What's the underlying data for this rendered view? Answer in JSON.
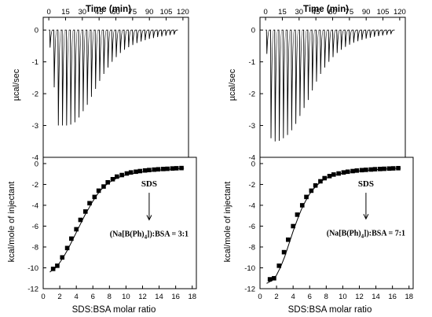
{
  "chart_data": [
    {
      "id": "left",
      "type": "line",
      "top_panel": {
        "title": "Time (min)",
        "ylabel": "µcal/sec",
        "xlim": [
          -5,
          125
        ],
        "ylim": [
          -4,
          0.4
        ],
        "x_ticks": [
          0,
          15,
          30,
          45,
          60,
          75,
          90,
          105,
          120
        ],
        "y_ticks": [
          0,
          -1,
          -2,
          -3,
          -4
        ],
        "y_tick_labels": [
          "0",
          "-1",
          "-2",
          "-3",
          "-4"
        ],
        "injection_start_min": 0.8,
        "injection_interval_min": 3.7,
        "peak_minima": [
          -0.55,
          -1.8,
          -3.0,
          -3.0,
          -3.0,
          -2.97,
          -2.9,
          -2.75,
          -2.55,
          -2.35,
          -2.1,
          -1.85,
          -1.6,
          -1.38,
          -1.18,
          -1.0,
          -0.85,
          -0.72,
          -0.62,
          -0.54,
          -0.47,
          -0.41,
          -0.36,
          -0.32,
          -0.28,
          -0.25,
          -0.22,
          -0.2,
          -0.18,
          -0.16,
          -0.14
        ]
      },
      "bottom_panel": {
        "xlabel": "SDS:BSA molar ratio",
        "ylabel": "kcal/mole of injectant",
        "xlim": [
          0,
          18.5
        ],
        "ylim": [
          -12,
          0.6
        ],
        "x_ticks": [
          0,
          2,
          4,
          6,
          8,
          10,
          12,
          14,
          16,
          18
        ],
        "y_ticks": [
          0,
          -2,
          -4,
          -6,
          -8,
          -10,
          -12
        ],
        "y_tick_labels": [
          "0",
          "-2",
          "-4",
          "-6",
          "-8",
          "-10",
          "-12"
        ],
        "points_x": [
          1.2,
          1.7,
          2.3,
          2.9,
          3.4,
          4.0,
          4.5,
          5.1,
          5.6,
          6.2,
          6.7,
          7.3,
          7.8,
          8.4,
          8.9,
          9.5,
          10.1,
          10.6,
          11.2,
          11.7,
          12.3,
          12.8,
          13.4,
          13.9,
          14.5,
          15.0,
          15.6,
          16.1,
          16.7
        ],
        "points_y": [
          -10.1,
          -9.8,
          -9.0,
          -8.1,
          -7.2,
          -6.3,
          -5.4,
          -4.6,
          -3.8,
          -3.2,
          -2.6,
          -2.2,
          -1.8,
          -1.5,
          -1.25,
          -1.1,
          -0.95,
          -0.85,
          -0.78,
          -0.72,
          -0.66,
          -0.62,
          -0.58,
          -0.55,
          -0.52,
          -0.5,
          -0.47,
          -0.45,
          -0.43
        ],
        "fit_x": [
          0.8,
          1.5,
          2.0,
          2.5,
          3.0,
          3.5,
          4.0,
          4.5,
          5.0,
          5.5,
          6.0,
          6.5,
          7.0,
          7.5,
          8.0,
          9.0,
          10.0,
          11.0,
          12.0,
          13.0,
          14.0,
          15.0,
          16.0,
          17.0
        ],
        "fit_y": [
          -10.4,
          -10.0,
          -9.5,
          -8.9,
          -8.2,
          -7.4,
          -6.6,
          -5.8,
          -5.0,
          -4.3,
          -3.6,
          -3.0,
          -2.5,
          -2.1,
          -1.8,
          -1.35,
          -1.08,
          -0.92,
          -0.8,
          -0.71,
          -0.63,
          -0.56,
          -0.5,
          -0.45
        ],
        "annotation_title": "SDS",
        "annotation_label_main": "(Na[B(Ph)",
        "annotation_label_sub": "4",
        "annotation_label_end": "]):BSA = 3:1",
        "annotation_x": 12.8,
        "annotation_title_y": -2.2,
        "annotation_arrow_from_y": -2.8,
        "annotation_arrow_to_y": -5.4,
        "annotation_label_y": -7.0
      }
    },
    {
      "id": "right",
      "type": "line",
      "top_panel": {
        "title": "Time (min)",
        "ylabel": "µcal/sec",
        "xlim": [
          -5,
          125
        ],
        "ylim": [
          -4,
          0.4
        ],
        "x_ticks": [
          0,
          15,
          30,
          45,
          60,
          75,
          90,
          105,
          120
        ],
        "y_ticks": [
          0,
          -1,
          -2,
          -3,
          -4
        ],
        "y_tick_labels": [
          "0",
          "-1",
          "-2",
          "-3",
          "-4"
        ],
        "injection_start_min": 0.8,
        "injection_interval_min": 3.7,
        "peak_minima": [
          -0.75,
          -3.4,
          -3.5,
          -3.48,
          -3.4,
          -3.3,
          -3.15,
          -2.95,
          -2.7,
          -2.45,
          -2.2,
          -1.9,
          -1.62,
          -1.38,
          -1.18,
          -1.0,
          -0.85,
          -0.72,
          -0.62,
          -0.53,
          -0.46,
          -0.4,
          -0.35,
          -0.31,
          -0.27,
          -0.24,
          -0.21,
          -0.19,
          -0.17,
          -0.15,
          -0.13
        ]
      },
      "bottom_panel": {
        "xlabel": "SDS:BSA molar ratio",
        "ylabel": "kcal/mole of injectant",
        "xlim": [
          0,
          18.5
        ],
        "ylim": [
          -12,
          0.6
        ],
        "x_ticks": [
          0,
          2,
          4,
          6,
          8,
          10,
          12,
          14,
          16,
          18
        ],
        "y_ticks": [
          0,
          -2,
          -4,
          -6,
          -8,
          -10,
          -12
        ],
        "y_tick_labels": [
          "0",
          "-2",
          "-4",
          "-6",
          "-8",
          "-10",
          "-12"
        ],
        "points_x": [
          1.2,
          1.7,
          2.3,
          2.9,
          3.4,
          4.0,
          4.5,
          5.1,
          5.6,
          6.2,
          6.7,
          7.3,
          7.8,
          8.4,
          8.9,
          9.5,
          10.1,
          10.6,
          11.2,
          11.7,
          12.3,
          12.8,
          13.4,
          13.9,
          14.5,
          15.0,
          15.6,
          16.1,
          16.7
        ],
        "points_y": [
          -11.1,
          -11.0,
          -9.8,
          -8.5,
          -7.3,
          -6.0,
          -4.9,
          -4.0,
          -3.2,
          -2.6,
          -2.1,
          -1.7,
          -1.4,
          -1.2,
          -1.05,
          -0.95,
          -0.85,
          -0.78,
          -0.72,
          -0.67,
          -0.63,
          -0.6,
          -0.57,
          -0.54,
          -0.52,
          -0.5,
          -0.48,
          -0.46,
          -0.44
        ],
        "fit_x": [
          0.8,
          1.5,
          2.0,
          2.5,
          3.0,
          3.5,
          4.0,
          4.5,
          5.0,
          5.5,
          6.0,
          6.5,
          7.0,
          7.5,
          8.0,
          9.0,
          10.0,
          11.0,
          12.0,
          13.0,
          14.0,
          15.0,
          16.0,
          17.0
        ],
        "fit_y": [
          -11.5,
          -11.2,
          -10.7,
          -9.9,
          -8.9,
          -7.7,
          -6.5,
          -5.4,
          -4.4,
          -3.6,
          -2.9,
          -2.4,
          -2.0,
          -1.65,
          -1.4,
          -1.1,
          -0.92,
          -0.8,
          -0.71,
          -0.64,
          -0.58,
          -0.53,
          -0.48,
          -0.44
        ],
        "annotation_title": "SDS",
        "annotation_label_main": "(Na[B(Ph)",
        "annotation_label_sub": "4",
        "annotation_label_end": "]):BSA = 7:1",
        "annotation_x": 12.8,
        "annotation_title_y": -2.2,
        "annotation_arrow_from_y": -2.8,
        "annotation_arrow_to_y": -5.3,
        "annotation_label_y": -6.9
      }
    }
  ]
}
